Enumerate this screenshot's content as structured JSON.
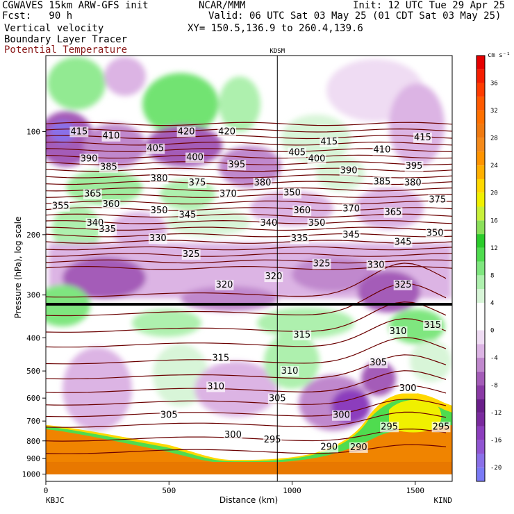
{
  "header": {
    "title_left": "CGWAVES 15km ARW-GFS init",
    "title_center": "NCAR/MMM",
    "init": "Init: 12 UTC Tue 29 Apr 25",
    "fcst": "Fcst:   90 h",
    "valid": "Valid: 06 UTC Sat 03 May 25 (01 CDT Sat 03 May 25)",
    "fields": [
      "Vertical velocity",
      "Boundary Layer Tracer",
      "Potential Temperature"
    ],
    "xy": "XY= 150.5,136.9 to 260.4,139.6"
  },
  "colors": {
    "theta": "#6b0000",
    "tropopause": "#000000",
    "terrain": "#f08400"
  },
  "chart_data": {
    "type": "heatmap",
    "ylabel": "Pressure (hPa), log scale",
    "xlabel": "Distance (km)",
    "x_start_label": "KBJC",
    "x_end_label": "KIND",
    "marker_label": "KDSM",
    "marker_x": 940,
    "xlim": [
      0,
      1650
    ],
    "ylim": [
      1050,
      60
    ],
    "y_scale": "log",
    "x_ticks": [
      {
        "value": 0,
        "label": "0"
      },
      {
        "value": 500,
        "label": "500"
      },
      {
        "value": 1000,
        "label": "1000"
      },
      {
        "value": 1500,
        "label": "1500"
      }
    ],
    "y_ticks": [
      {
        "value": 100,
        "label": "100"
      },
      {
        "value": 200,
        "label": "200"
      },
      {
        "value": 300,
        "label": "300"
      },
      {
        "value": 400,
        "label": "400"
      },
      {
        "value": 500,
        "label": "500"
      },
      {
        "value": 600,
        "label": "600"
      },
      {
        "value": 700,
        "label": "700"
      },
      {
        "value": 800,
        "label": "800"
      },
      {
        "value": 900,
        "label": "900"
      },
      {
        "value": 1000,
        "label": "1000"
      }
    ],
    "colorbar": {
      "units": "cm s⁻¹",
      "levels": [
        -22,
        -20,
        -18,
        -16,
        -14,
        -12,
        -10,
        -8,
        -6,
        -4,
        -2,
        0,
        2,
        4,
        6,
        8,
        10,
        12,
        14,
        16,
        18,
        20,
        22,
        24,
        26,
        28,
        30,
        32,
        34,
        36,
        38,
        40
      ],
      "colors": [
        "#7a7af5",
        "#8a70e8",
        "#9055d2",
        "#8c3ebd",
        "#7a2a9e",
        "#6a1f8a",
        "#8a3aa5",
        "#a45cb8",
        "#c088cd",
        "#dcb4e4",
        "#efdcf3",
        "#ffffff",
        "#ffffff",
        "#d8f5d8",
        "#aef0ae",
        "#7fe67f",
        "#4fdc4f",
        "#2bcc2b",
        "#8be05a",
        "#c8f03a",
        "#f0f000",
        "#ffd800",
        "#ffb000",
        "#ff9400",
        "#f58a1a",
        "#f07a10",
        "#ff7000",
        "#ff5a00",
        "#ff3c00",
        "#f51e00",
        "#e50000"
      ],
      "tick_labels": [
        "-20",
        "-16",
        "-12",
        "-8",
        "-4",
        "0",
        "4",
        "8",
        "12",
        "16",
        "20",
        "24",
        "28",
        "32",
        "36"
      ]
    },
    "theta_labels": [
      {
        "x": 135,
        "p": 100,
        "value": 415
      },
      {
        "x": 265,
        "p": 103,
        "value": 410
      },
      {
        "x": 570,
        "p": 100,
        "value": 420
      },
      {
        "x": 735,
        "p": 100,
        "value": 420
      },
      {
        "x": 1150,
        "p": 107,
        "value": 415
      },
      {
        "x": 1530,
        "p": 104,
        "value": 415
      },
      {
        "x": 175,
        "p": 120,
        "value": 390
      },
      {
        "x": 445,
        "p": 112,
        "value": 405
      },
      {
        "x": 605,
        "p": 119,
        "value": 400
      },
      {
        "x": 775,
        "p": 125,
        "value": 395
      },
      {
        "x": 1020,
        "p": 115,
        "value": 405
      },
      {
        "x": 1100,
        "p": 120,
        "value": 400
      },
      {
        "x": 1230,
        "p": 130,
        "value": 390
      },
      {
        "x": 1365,
        "p": 113,
        "value": 410
      },
      {
        "x": 1495,
        "p": 126,
        "value": 395
      },
      {
        "x": 255,
        "p": 127,
        "value": 385
      },
      {
        "x": 460,
        "p": 137,
        "value": 380
      },
      {
        "x": 615,
        "p": 141,
        "value": 375
      },
      {
        "x": 880,
        "p": 141,
        "value": 380
      },
      {
        "x": 1365,
        "p": 140,
        "value": 385
      },
      {
        "x": 1490,
        "p": 141,
        "value": 380
      },
      {
        "x": 190,
        "p": 152,
        "value": 365
      },
      {
        "x": 740,
        "p": 152,
        "value": 370
      },
      {
        "x": 1000,
        "p": 151,
        "value": 350
      },
      {
        "x": 60,
        "p": 165,
        "value": 355
      },
      {
        "x": 265,
        "p": 163,
        "value": 360
      },
      {
        "x": 460,
        "p": 170,
        "value": 350
      },
      {
        "x": 575,
        "p": 175,
        "value": 345
      },
      {
        "x": 1040,
        "p": 170,
        "value": 360
      },
      {
        "x": 1240,
        "p": 168,
        "value": 370
      },
      {
        "x": 1410,
        "p": 172,
        "value": 365
      },
      {
        "x": 1590,
        "p": 158,
        "value": 375
      },
      {
        "x": 200,
        "p": 185,
        "value": 340
      },
      {
        "x": 250,
        "p": 193,
        "value": 335
      },
      {
        "x": 905,
        "p": 185,
        "value": 340
      },
      {
        "x": 1100,
        "p": 185,
        "value": 350
      },
      {
        "x": 1240,
        "p": 200,
        "value": 345
      },
      {
        "x": 1450,
        "p": 210,
        "value": 345
      },
      {
        "x": 1580,
        "p": 198,
        "value": 350
      },
      {
        "x": 455,
        "p": 205,
        "value": 330
      },
      {
        "x": 590,
        "p": 228,
        "value": 325
      },
      {
        "x": 1030,
        "p": 205,
        "value": 335
      },
      {
        "x": 1120,
        "p": 243,
        "value": 325
      },
      {
        "x": 1340,
        "p": 245,
        "value": 330
      },
      {
        "x": 1450,
        "p": 280,
        "value": 325
      },
      {
        "x": 725,
        "p": 280,
        "value": 320
      },
      {
        "x": 925,
        "p": 265,
        "value": 320
      },
      {
        "x": 1040,
        "p": 392,
        "value": 315
      },
      {
        "x": 1570,
        "p": 367,
        "value": 315
      },
      {
        "x": 1430,
        "p": 383,
        "value": 310
      },
      {
        "x": 710,
        "p": 458,
        "value": 315
      },
      {
        "x": 990,
        "p": 500,
        "value": 310
      },
      {
        "x": 1350,
        "p": 473,
        "value": 305
      },
      {
        "x": 690,
        "p": 555,
        "value": 310
      },
      {
        "x": 940,
        "p": 601,
        "value": 305
      },
      {
        "x": 1470,
        "p": 561,
        "value": 300
      },
      {
        "x": 500,
        "p": 673,
        "value": 305
      },
      {
        "x": 1200,
        "p": 673,
        "value": 300
      },
      {
        "x": 1395,
        "p": 727,
        "value": 295
      },
      {
        "x": 1605,
        "p": 727,
        "value": 295
      },
      {
        "x": 760,
        "p": 768,
        "value": 300
      },
      {
        "x": 920,
        "p": 793,
        "value": 295
      },
      {
        "x": 1150,
        "p": 833,
        "value": 290
      },
      {
        "x": 1270,
        "p": 835,
        "value": 290
      }
    ]
  }
}
